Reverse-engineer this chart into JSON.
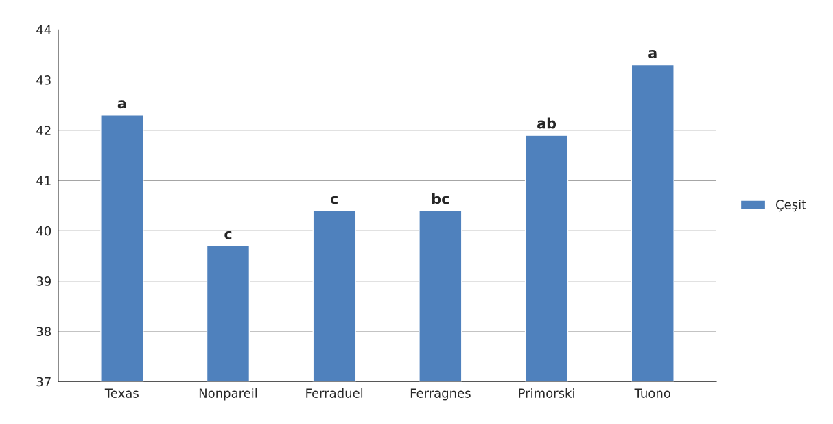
{
  "chart_data": {
    "type": "bar",
    "categories": [
      "Texas",
      "Nonpareil",
      "Ferraduel",
      "Ferragnes",
      "Primorski",
      "Tuono"
    ],
    "series": [
      {
        "name": "Çeşit",
        "color": "#4f81bd",
        "values": [
          42.3,
          39.7,
          40.4,
          40.4,
          41.9,
          43.3
        ],
        "value_labels": [
          "a",
          "c",
          "c",
          "bc",
          "ab",
          "a"
        ]
      }
    ],
    "ylim": [
      37,
      44
    ],
    "yticks": [
      37,
      38,
      39,
      40,
      41,
      42,
      43,
      44
    ],
    "grid": "y",
    "legend": "right"
  }
}
